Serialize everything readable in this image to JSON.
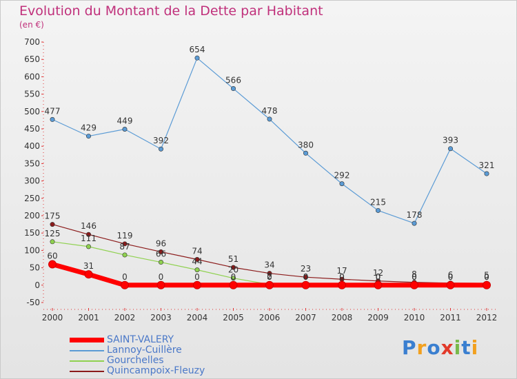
{
  "header": {
    "title": "Evolution du Montant de la Dette par Habitant",
    "unit": "(en €)"
  },
  "brand": "Proxiti",
  "brand_colors": [
    "#3a7fd0",
    "#f2a01e",
    "#3a7fd0",
    "#e23a2a",
    "#78b94a",
    "#3a7fd0",
    "#f2a01e"
  ],
  "chart_data": {
    "type": "line",
    "title": "Evolution du Montant de la Dette par Habitant",
    "ylabel": "(en €)",
    "xlabel": "",
    "categories": [
      "2000",
      "2001",
      "2002",
      "2003",
      "2004",
      "2005",
      "2006",
      "2007",
      "2008",
      "2009",
      "2010",
      "2011",
      "2012"
    ],
    "ylim": [
      -50,
      700
    ],
    "yticks": [
      -50,
      0,
      50,
      100,
      150,
      200,
      250,
      300,
      350,
      400,
      450,
      500,
      550,
      600,
      650,
      700
    ],
    "grid": false,
    "legend_position": "bottom-left",
    "series": [
      {
        "name": "Lannoy-Cuillère",
        "color": "#5b9bd5",
        "values": [
          477,
          429,
          449,
          392,
          654,
          566,
          478,
          380,
          292,
          215,
          178,
          393,
          321
        ]
      },
      {
        "name": "Gourchelles",
        "color": "#8fd14f",
        "values": [
          125,
          111,
          87,
          66,
          44,
          20,
          2,
          0,
          0,
          0,
          0,
          0,
          0
        ]
      },
      {
        "name": "Quincampoix-Fleuzy",
        "color": "#8b1a1a",
        "values": [
          175,
          146,
          119,
          96,
          74,
          51,
          34,
          23,
          17,
          12,
          8,
          6,
          5
        ]
      },
      {
        "name": "SAINT-VALERY",
        "color": "#ff0000",
        "values": [
          60,
          31,
          0,
          0,
          0,
          0,
          0,
          0,
          0,
          0,
          0,
          0,
          0
        ]
      }
    ],
    "legend": [
      {
        "name": "SAINT-VALERY",
        "color": "#ff0000"
      },
      {
        "name": "Lannoy-Cuillère",
        "color": "#5b9bd5"
      },
      {
        "name": "Gourchelles",
        "color": "#8fd14f"
      },
      {
        "name": "Quincampoix-Fleuzy",
        "color": "#8b1a1a"
      }
    ]
  }
}
